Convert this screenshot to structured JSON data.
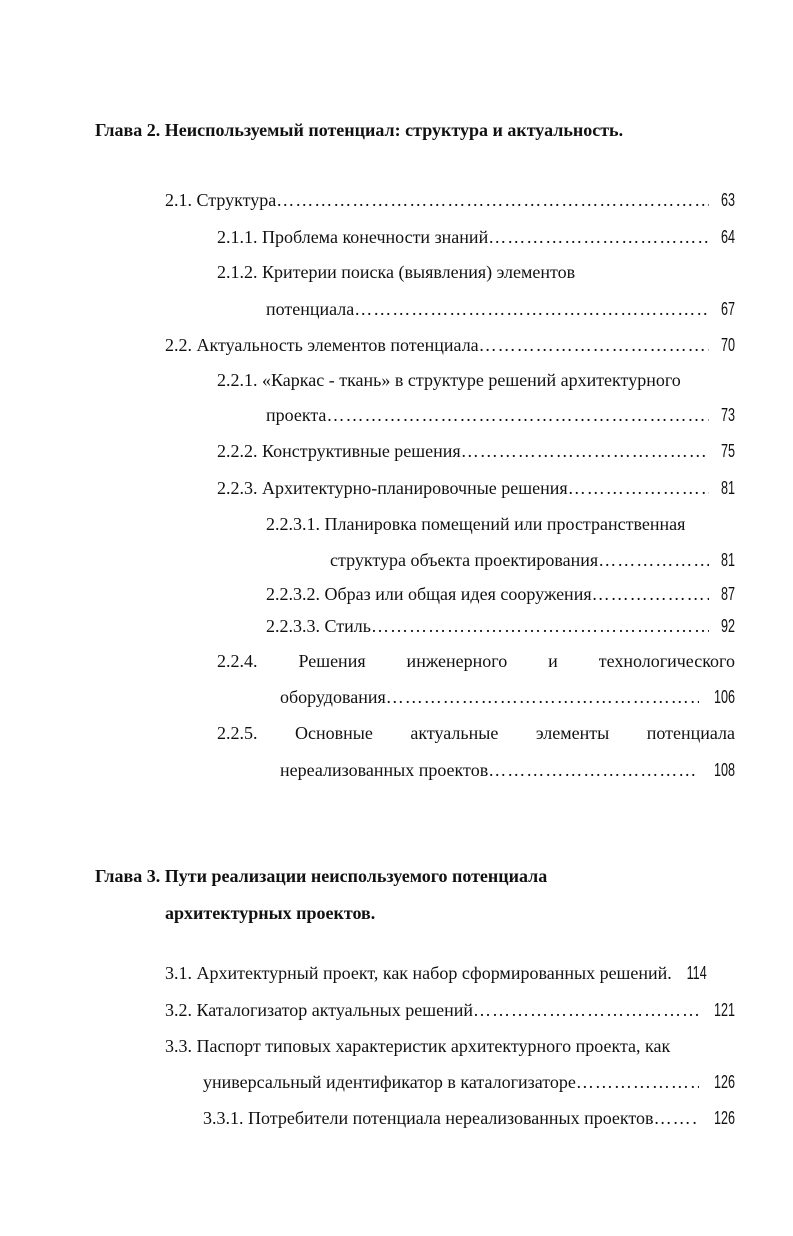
{
  "chapter2": {
    "title": "Глава 2. Неиспользуемый потенциал: структура и актуальность.",
    "entries": [
      {
        "text": "2.1. Структура",
        "page": "63"
      },
      {
        "text": "2.1.1. Проблема конечности знаний",
        "page": "64"
      },
      {
        "text": "2.1.2. Критерии поиска (выявления) элементов",
        "cont": "потенциала",
        "page": "67"
      },
      {
        "text": "2.2. Актуальность элементов потенциала",
        "page": "70"
      },
      {
        "text": "2.2.1. «Каркас - ткань» в структуре решений архитектурного",
        "cont": "проекта",
        "page": "73"
      },
      {
        "text": "2.2.2. Конструктивные решения",
        "page": "75"
      },
      {
        "text": "2.2.3. Архитектурно-планировочные решения",
        "page": "81"
      },
      {
        "text": "2.2.3.1. Планировка помещений или пространственная",
        "cont": "структура объекта проектирования",
        "page": "81"
      },
      {
        "text": "2.2.3.2. Образ или общая идея сооружения",
        "page": "87"
      },
      {
        "text": "2.2.3.3. Стиль",
        "page": "92"
      },
      {
        "text": "2.2.4.   Решения   инженерного   и   технологического",
        "cont": "оборудования ",
        "page": "106"
      },
      {
        "text": "2.2.5.   Основные   актуальные   элементы   потенциала",
        "cont": "нереализованных проектов",
        "page": "108"
      }
    ]
  },
  "chapter3": {
    "title_line1": "Глава 3. Пути реализации неиспользуемого потенциала",
    "title_line2": "архитектурных проектов.",
    "entries": [
      {
        "text": "3.1. Архитектурный проект, как набор сформированных решений.",
        "page": "114"
      },
      {
        "text": "3.2. Каталогизатор актуальных решений",
        "page": "121"
      },
      {
        "text": "3.3. Паспорт типовых характеристик архитектурного проекта, как",
        "cont": "универсальный идентификатор в каталогизаторе",
        "page": "126"
      },
      {
        "text": "3.3.1. Потребители потенциала нереализованных проектов",
        "page": "126"
      }
    ]
  }
}
